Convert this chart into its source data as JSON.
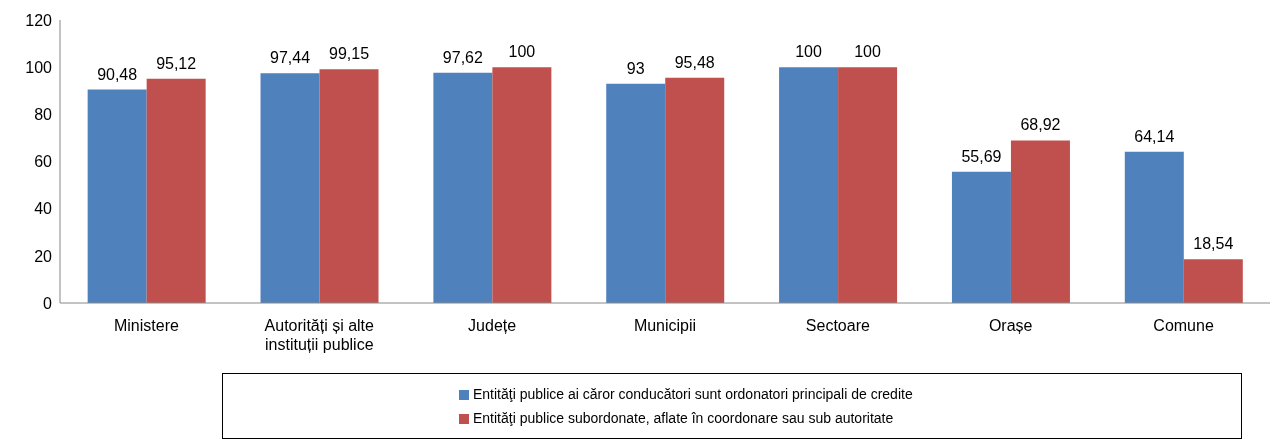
{
  "chart_data": {
    "type": "bar",
    "categories": [
      "Ministere",
      "Autorități și alte instituții publice",
      "Județe",
      "Municipii",
      "Sectoare",
      "Orașe",
      "Comune"
    ],
    "series": [
      {
        "name": "Entităţi publice ai căror conducători sunt ordonatori principali de credite",
        "color": "#4f81bd",
        "values": [
          90.48,
          97.44,
          97.62,
          93,
          100,
          55.69,
          64.14
        ],
        "value_labels": [
          "90,48",
          "97,44",
          "97,62",
          "93",
          "100",
          "55,69",
          "64,14"
        ]
      },
      {
        "name": "Entităţi publice subordonate, aflate în coordonare sau sub autoritate",
        "color": "#c0504d",
        "values": [
          95.12,
          99.15,
          100,
          95.48,
          100,
          68.92,
          18.54
        ],
        "value_labels": [
          "95,12",
          "99,15",
          "100",
          "95,48",
          "100",
          "68,92",
          "18,54"
        ]
      }
    ],
    "ylim": [
      0,
      120
    ],
    "yticks": [
      0,
      20,
      40,
      60,
      80,
      100,
      120
    ],
    "grid": false,
    "legend": "bottom"
  }
}
